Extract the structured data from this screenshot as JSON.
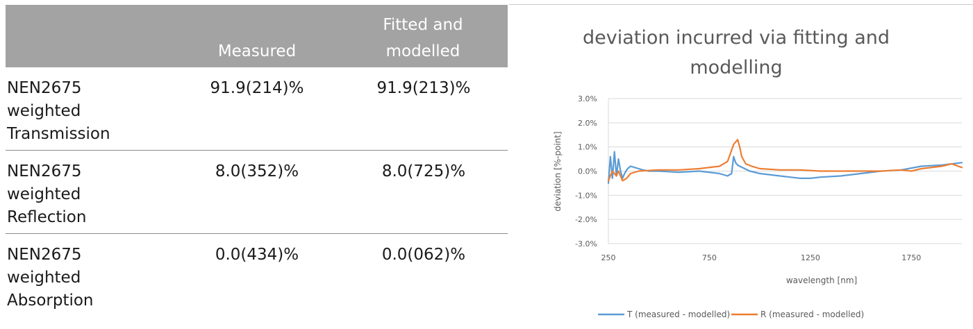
{
  "table": {
    "headers": {
      "label": "",
      "measured": "Measured",
      "fitted": "Fitted and\nmodelled"
    },
    "rows": [
      {
        "label": "NEN2675\nweighted\nTransmission",
        "measured": "91.9(214)%",
        "fitted": "91.9(213)%"
      },
      {
        "label": "NEN2675\nweighted\nReflection",
        "measured": "8.0(352)%",
        "fitted": "8.0(725)%"
      },
      {
        "label": "NEN2675\nweighted\nAbsorption",
        "measured": "0.0(434)%",
        "fitted": "0.0(062)%"
      }
    ]
  },
  "chart_data": {
    "type": "line",
    "title_lines": [
      "deviation incurred via fitting and",
      "modelling"
    ],
    "xlabel": "wavelength [nm]",
    "ylabel": "deviation [%-point]",
    "xlim": [
      250,
      2000
    ],
    "ylim": [
      -3.0,
      3.0
    ],
    "x_ticks": [
      250,
      750,
      1250,
      1750
    ],
    "x_tick_labels": [
      "250",
      "750",
      "1250",
      "1750"
    ],
    "y_ticks": [
      -3.0,
      -2.0,
      -1.0,
      0.0,
      1.0,
      2.0,
      3.0
    ],
    "y_tick_labels": [
      "-3.0%",
      "-2.0%",
      "-1.0%",
      "0.0%",
      "1.0%",
      "2.0%",
      "3.0%"
    ],
    "grid": true,
    "legend_position": "bottom",
    "series": [
      {
        "name": "T (measured - modelled)",
        "color": "#5b9bd5",
        "x": [
          250,
          260,
          270,
          280,
          290,
          300,
          310,
          320,
          330,
          345,
          360,
          380,
          400,
          420,
          450,
          500,
          600,
          700,
          800,
          840,
          860,
          870,
          880,
          890,
          900,
          950,
          1000,
          1100,
          1200,
          1250,
          1300,
          1400,
          1500,
          1600,
          1700,
          1800,
          1900,
          1950,
          2000
        ],
        "y": [
          -0.5,
          0.6,
          -0.3,
          0.8,
          -0.2,
          0.5,
          0.0,
          -0.3,
          -0.1,
          0.1,
          0.2,
          0.15,
          0.1,
          0.05,
          0.0,
          0.0,
          -0.05,
          0.0,
          -0.1,
          -0.2,
          -0.1,
          0.6,
          0.35,
          0.25,
          0.2,
          0.0,
          -0.1,
          -0.2,
          -0.3,
          -0.3,
          -0.25,
          -0.2,
          -0.1,
          0.0,
          0.05,
          0.2,
          0.25,
          0.3,
          0.35
        ]
      },
      {
        "name": "R (measured - modelled)",
        "color": "#ed7d31",
        "x": [
          250,
          270,
          290,
          300,
          320,
          340,
          360,
          400,
          500,
          600,
          700,
          800,
          840,
          870,
          890,
          900,
          910,
          930,
          960,
          1000,
          1100,
          1200,
          1300,
          1400,
          1500,
          1600,
          1700,
          1750,
          1800,
          1900,
          1950,
          2000
        ],
        "y": [
          -0.4,
          0.0,
          -0.2,
          0.0,
          -0.4,
          -0.3,
          -0.1,
          0.0,
          0.05,
          0.05,
          0.1,
          0.2,
          0.4,
          1.1,
          1.3,
          1.0,
          0.6,
          0.3,
          0.2,
          0.1,
          0.05,
          0.05,
          0.0,
          0.0,
          0.0,
          0.0,
          0.05,
          0.0,
          0.1,
          0.2,
          0.3,
          0.15
        ]
      }
    ]
  }
}
